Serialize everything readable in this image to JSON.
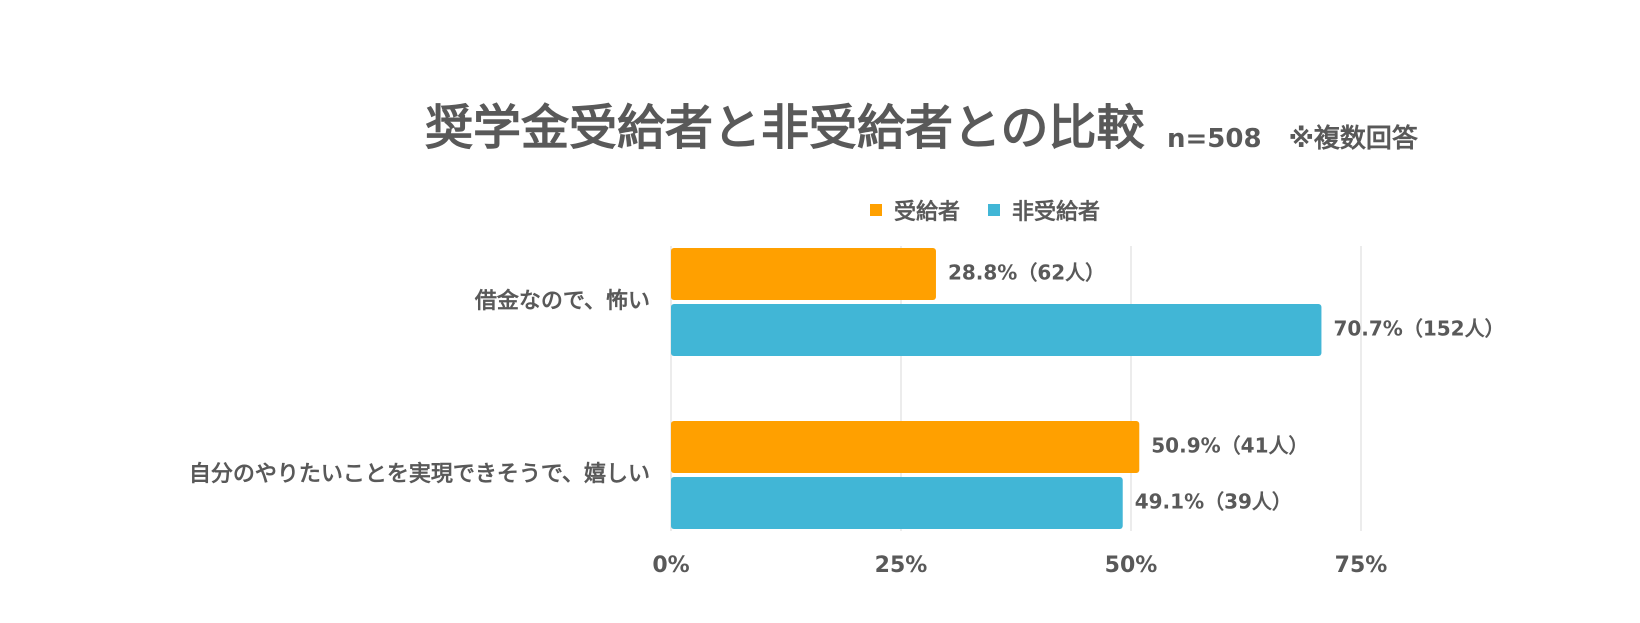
{
  "chart_data": {
    "type": "bar",
    "orientation": "horizontal",
    "title": "奨学金受給者と非受給者との比較",
    "subtitle": "n=508 ※複数回答",
    "categories": [
      "借金なので、怖い",
      "自分のやりたいことを実現できそうで、嬉しい"
    ],
    "series": [
      {
        "name": "受給者",
        "color": "#FFA000",
        "values": [
          28.8,
          50.9
        ],
        "labels": [
          "28.8%（62人）",
          "50.9%（41人）"
        ]
      },
      {
        "name": "非受給者",
        "color": "#41B6D6",
        "values": [
          70.7,
          49.1
        ],
        "labels": [
          "70.7%（152人）",
          "49.1%（39人）"
        ]
      }
    ],
    "x_ticks": [
      0,
      25,
      50,
      75
    ],
    "x_tick_labels": [
      "0%",
      "25%",
      "50%",
      "75%"
    ],
    "xlim": [
      0,
      75
    ],
    "grid": true,
    "legend_position": "top"
  }
}
